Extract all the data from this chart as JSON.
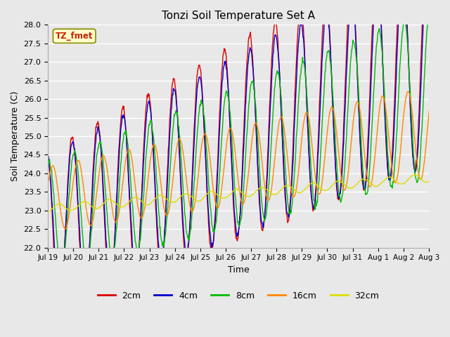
{
  "title": "Tonzi Soil Temperature Set A",
  "xlabel": "Time",
  "ylabel": "Soil Temperature (C)",
  "ylim": [
    22.0,
    28.0
  ],
  "yticks": [
    22.0,
    22.5,
    23.0,
    23.5,
    24.0,
    24.5,
    25.0,
    25.5,
    26.0,
    26.5,
    27.0,
    27.5,
    28.0
  ],
  "xtick_labels": [
    "Jul 19",
    "Jul 20",
    "Jul 21",
    "Jul 22",
    "Jul 23",
    "Jul 24",
    "Jul 25",
    "Jul 26",
    "Jul 27",
    "Jul 28",
    "Jul 29",
    "Jul 30",
    "Jul 31",
    "Aug 1",
    "Aug 2",
    "Aug 3"
  ],
  "line_colors": [
    "#dd0000",
    "#0000cc",
    "#00bb00",
    "#ff8800",
    "#dddd00"
  ],
  "line_labels": [
    "2cm",
    "4cm",
    "8cm",
    "16cm",
    "32cm"
  ],
  "annotation_text": "TZ_fmet",
  "annotation_color": "#cc2200",
  "annotation_bg": "#ffffcc",
  "annotation_border": "#888800",
  "bg_color": "#e8e8e8",
  "figwidth": 6.4,
  "figheight": 4.8,
  "dpi": 100
}
